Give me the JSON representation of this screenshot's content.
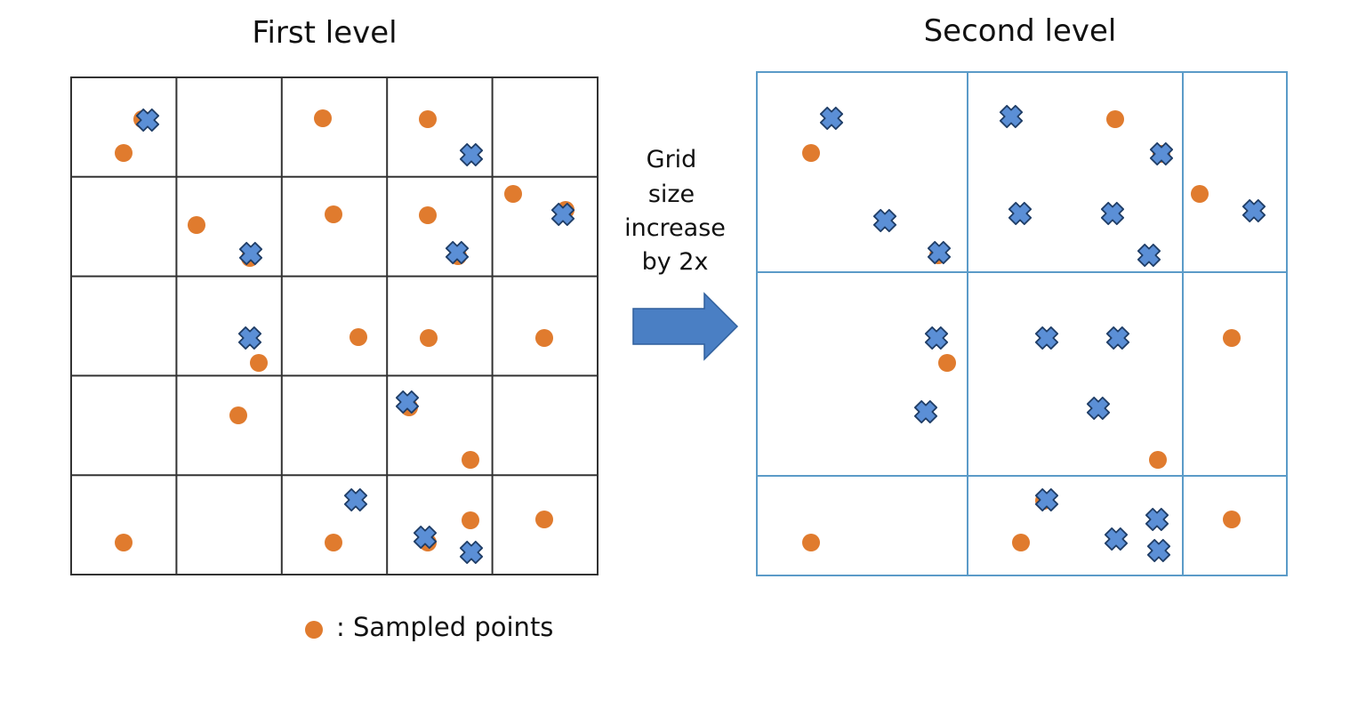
{
  "left_panel": {
    "title": "First level",
    "grid_color": "#333333",
    "columns": 5,
    "rows": 5
  },
  "right_panel": {
    "title": "Second level",
    "grid_color": "#5b9bc8"
  },
  "transition": {
    "label_lines": [
      "Grid",
      "size",
      "increase",
      "by 2x"
    ],
    "arrow_color": "#4a7fc4",
    "arrow_stroke": "#2f5f9c"
  },
  "legend": {
    "text": ": Sampled points"
  },
  "colors": {
    "sampled_point": "#e07b2e",
    "cross_fill": "#5b8fd6",
    "cross_stroke": "#1f3d66"
  }
}
